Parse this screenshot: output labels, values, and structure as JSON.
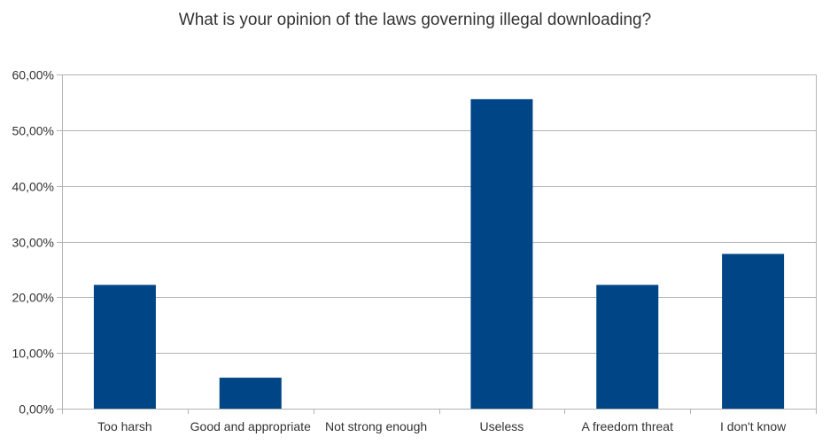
{
  "chart_data": {
    "type": "bar",
    "title": "What is your opinion of the laws governing illegal downloading?",
    "categories": [
      "Too harsh",
      "Good and appropriate",
      "Not strong enough",
      "Useless",
      "A freedom threat",
      "I don't know"
    ],
    "values": [
      22.22,
      5.56,
      0,
      55.56,
      22.22,
      27.78
    ],
    "ylim": [
      0,
      60
    ],
    "yticks": [
      0,
      10,
      20,
      30,
      40,
      50,
      60
    ],
    "ytick_labels": [
      "0,00%",
      "10,00%",
      "20,00%",
      "30,00%",
      "40,00%",
      "50,00%",
      "60,00%"
    ],
    "grid": true,
    "bar_color": "#004586",
    "grid_color": "#b3b3b3"
  }
}
